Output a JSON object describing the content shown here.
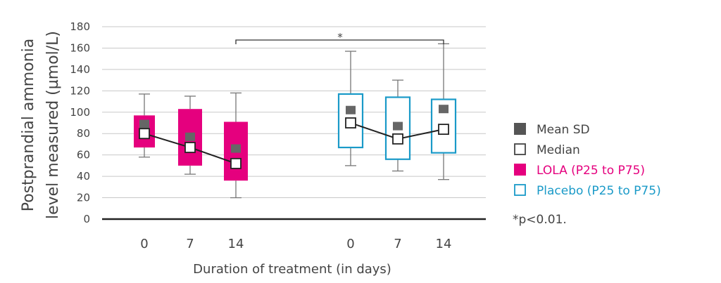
{
  "chart_data": {
    "type": "box",
    "ylabel_line1": "Postprandial ammonia",
    "ylabel_line2": "level measured (µmol/L)",
    "xlabel": "Duration of treatment (in days)",
    "ylim": [
      0,
      180
    ],
    "yticks": [
      0,
      20,
      40,
      60,
      80,
      100,
      120,
      140,
      160,
      180
    ],
    "grid": true,
    "significance_label": "*",
    "footnote": "*p<0.01.",
    "colors": {
      "lola": "#e5007e",
      "placebo": "#1a9ac8",
      "mean": "#666666",
      "text": "#444444",
      "grid": "#c8c8c8"
    },
    "legend": [
      {
        "label": "Mean SD",
        "marker": "filled-square",
        "color": "#555555"
      },
      {
        "label": "Median",
        "marker": "open-square",
        "color": "#444444"
      },
      {
        "label": "LOLA (P25 to P75)",
        "marker": "filled-square",
        "color": "#e5007e"
      },
      {
        "label": "Placebo (P25 to P75)",
        "marker": "open-square",
        "color": "#1a9ac8"
      }
    ],
    "groups": [
      {
        "name": "LOLA",
        "color": "#e5007e",
        "filled": true,
        "boxes": [
          {
            "day": "0",
            "min": 58,
            "q1": 67,
            "median": 80,
            "q3": 97,
            "max": 117,
            "mean": 89
          },
          {
            "day": "7",
            "min": 42,
            "q1": 50,
            "median": 67,
            "q3": 103,
            "max": 115,
            "mean": 77
          },
          {
            "day": "14",
            "min": 20,
            "q1": 36,
            "median": 52,
            "q3": 91,
            "max": 118,
            "mean": 66
          }
        ]
      },
      {
        "name": "Placebo",
        "color": "#1a9ac8",
        "filled": false,
        "boxes": [
          {
            "day": "0",
            "min": 50,
            "q1": 67,
            "median": 90,
            "q3": 117,
            "max": 157,
            "mean": 102
          },
          {
            "day": "7",
            "min": 45,
            "q1": 56,
            "median": 75,
            "q3": 114,
            "max": 130,
            "mean": 87
          },
          {
            "day": "14",
            "min": 37,
            "q1": 62,
            "median": 84,
            "q3": 112,
            "max": 164,
            "mean": 103
          }
        ]
      }
    ]
  }
}
